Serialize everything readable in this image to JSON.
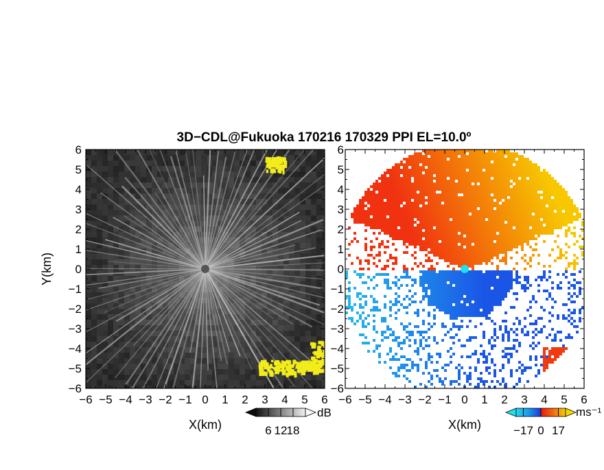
{
  "chart_data": {
    "type": "heatmap",
    "title": "3D−CDL@Fukuoka 170216 170329 PPI EL=10.0º",
    "panels": [
      {
        "id": "snr",
        "xlabel": "X(km)",
        "ylabel": "Y(km)",
        "xlim": [
          -6,
          6
        ],
        "ylim": [
          -6,
          6
        ],
        "x_ticks": [
          -6,
          -5,
          -4,
          -3,
          -2,
          -1,
          0,
          1,
          2,
          3,
          4,
          5,
          6
        ],
        "y_ticks": [
          -6,
          -5,
          -4,
          -3,
          -2,
          -1,
          0,
          1,
          2,
          3,
          4,
          5,
          6
        ],
        "x_tick_labels": [
          "−6",
          "−5",
          "−4",
          "−3",
          "−2",
          "−1",
          "0",
          "1",
          "2",
          "3",
          "4",
          "5",
          "6"
        ],
        "y_tick_labels": [
          "−6",
          "−5",
          "−4",
          "−3",
          "−2",
          "−1",
          "0",
          "1",
          "2",
          "3",
          "4",
          "5",
          "6"
        ],
        "colorbar": {
          "unit": "dB",
          "tick_values": [
            6,
            12,
            18
          ],
          "tick_labels": [
            "6",
            "12",
            "18"
          ],
          "range": [
            0,
            24
          ],
          "colormap": "grayscale"
        }
      },
      {
        "id": "velocity",
        "xlabel": "X(km)",
        "xlim": [
          -6,
          6
        ],
        "ylim": [
          -6,
          6
        ],
        "x_ticks": [
          -6,
          -5,
          -4,
          -3,
          -2,
          -1,
          0,
          1,
          2,
          3,
          4,
          5,
          6
        ],
        "y_ticks": [
          -6,
          -5,
          -4,
          -3,
          -2,
          -1,
          0,
          1,
          2,
          3,
          4,
          5,
          6
        ],
        "x_tick_labels": [
          "−6",
          "−5",
          "−4",
          "−3",
          "−2",
          "−1",
          "0",
          "1",
          "2",
          "3",
          "4",
          "5",
          "6"
        ],
        "y_tick_labels": [
          "−6",
          "−5",
          "−4",
          "−3",
          "−2",
          "−1",
          "0",
          "1",
          "2",
          "3",
          "4",
          "5",
          "6"
        ],
        "colorbar": {
          "unit": "ms⁻¹",
          "tick_values": [
            -17,
            0,
            17
          ],
          "tick_labels": [
            "−17",
            "0",
            "17"
          ],
          "range": [
            -24,
            24
          ],
          "colormap": "blue-red"
        }
      }
    ],
    "colors": {
      "snr_background": "#2e2e2e",
      "snr_highlight": "#f2ec1a",
      "vel_towards": "#1a55e6",
      "vel_away": "#f03a10",
      "vel_far_positive": "#f7c200",
      "vel_near_negative": "#23b8ee",
      "center_marker": "#20e0f0"
    }
  }
}
